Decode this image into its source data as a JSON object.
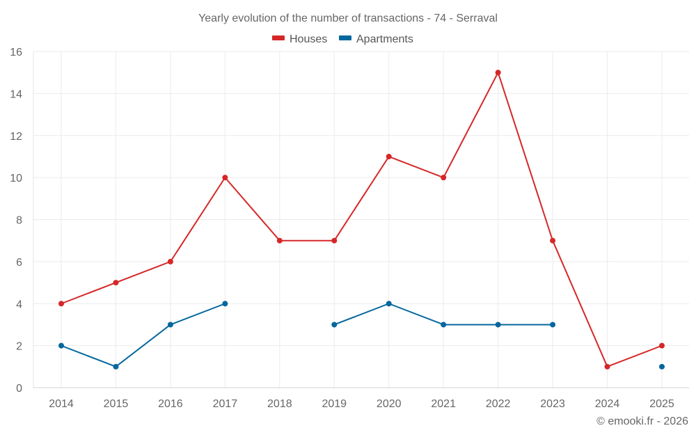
{
  "chart_data": {
    "type": "line",
    "title": "Yearly evolution of the number of transactions - 74 - Serraval",
    "xlabel": "",
    "ylabel": "",
    "categories": [
      "2014",
      "2015",
      "2016",
      "2017",
      "2018",
      "2019",
      "2020",
      "2021",
      "2022",
      "2023",
      "2024",
      "2025"
    ],
    "ylim": [
      0,
      16
    ],
    "yticks": [
      0,
      2,
      4,
      6,
      8,
      10,
      12,
      14,
      16
    ],
    "grid": true,
    "legend_position": "top-center",
    "series": [
      {
        "name": "Houses",
        "color": "#d62728",
        "values": [
          4,
          5,
          6,
          10,
          7,
          7,
          11,
          10,
          15,
          7,
          1,
          2
        ]
      },
      {
        "name": "Apartments",
        "color": "#04679e",
        "values": [
          2,
          1,
          3,
          4,
          null,
          3,
          4,
          3,
          3,
          3,
          null,
          1
        ]
      }
    ],
    "credit": "© emooki.fr - 2026"
  }
}
